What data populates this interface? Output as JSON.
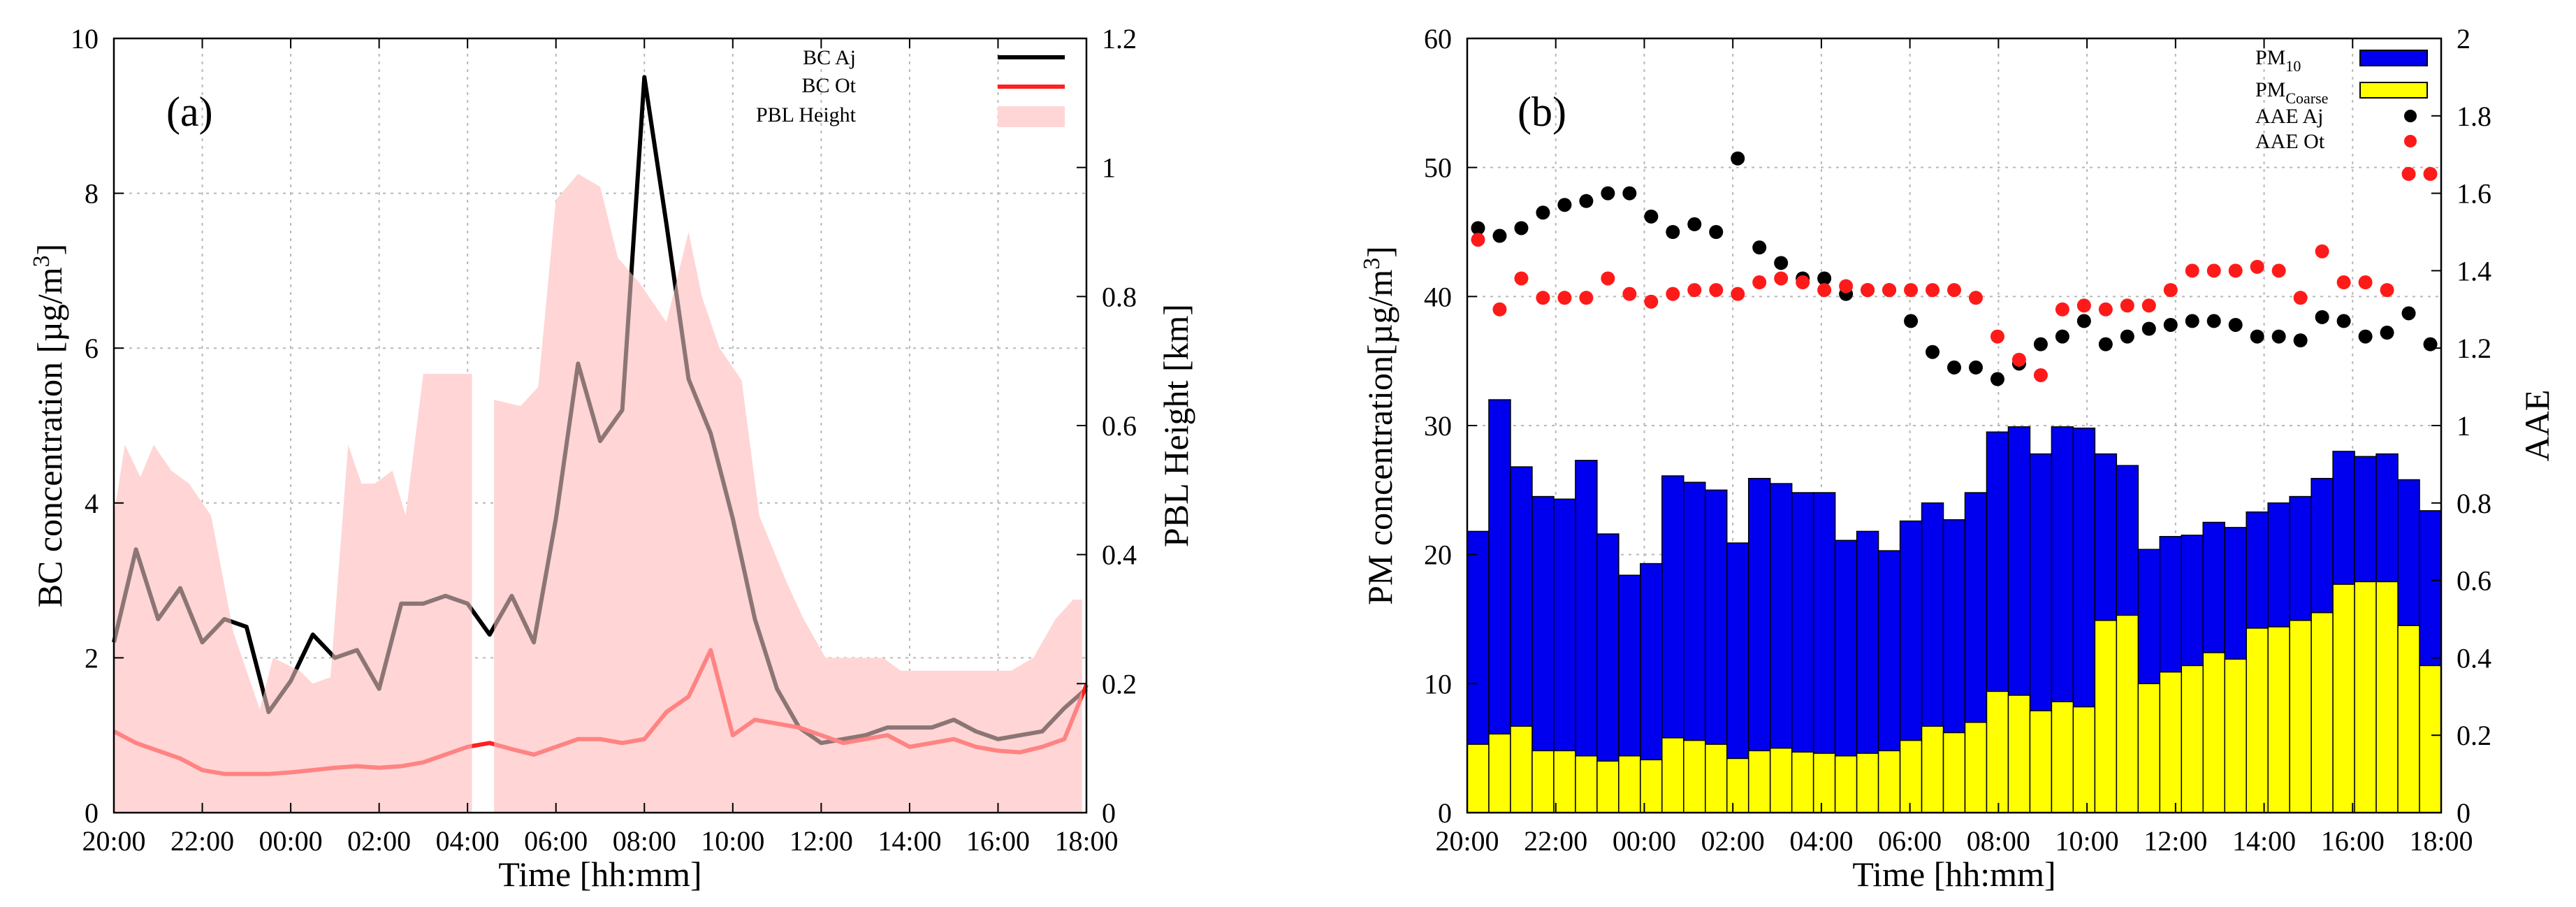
{
  "chart_data": [
    {
      "type": "line",
      "panel_label": "(a)",
      "xlabel": "Time [hh:mm]",
      "ylabel": "BC concentration [µg/m",
      "ylabel_sup": "3",
      "ylabel_close": "]",
      "y2label": "PBL Height [km]",
      "x_tick_labels": [
        "20:00",
        "22:00",
        "00:00",
        "02:00",
        "04:00",
        "06:00",
        "08:00",
        "10:00",
        "12:00",
        "14:00",
        "16:00",
        "18:00"
      ],
      "x_range_hours": [
        0,
        22
      ],
      "ylim": [
        0,
        10
      ],
      "yticks": [
        "0",
        "2",
        "4",
        "6",
        "8",
        "10"
      ],
      "y2lim": [
        0,
        1.2
      ],
      "y2ticks": [
        "0",
        "0.2",
        "0.4",
        "0.6",
        "0.8",
        "1",
        "1.2"
      ],
      "grid": true,
      "legend_position": "top-right",
      "legend": [
        "BC Aj",
        "BC Ot",
        "PBL Height"
      ],
      "colors": {
        "bc_aj": "#000000",
        "bc_ot": "#ff2020",
        "pbl": "#ffd6d6"
      },
      "series": [
        {
          "name": "BC Aj",
          "x": [
            0,
            0.5,
            1,
            1.5,
            2,
            2.5,
            3,
            3.5,
            4,
            4.5,
            5,
            5.5,
            6,
            6.5,
            7,
            7.5,
            8,
            8.5,
            9,
            9.5,
            10,
            10.5,
            11,
            11.5,
            12,
            12.5,
            13,
            13.5,
            14,
            14.5,
            15,
            15.5,
            16,
            16.5,
            17,
            17.5,
            18,
            18.5,
            19,
            19.5,
            20,
            20.5,
            21,
            21.5,
            22
          ],
          "values": [
            2.2,
            3.4,
            2.5,
            2.9,
            2.2,
            2.5,
            2.4,
            1.3,
            1.7,
            2.3,
            2.0,
            2.1,
            1.6,
            2.7,
            2.7,
            2.8,
            2.7,
            2.3,
            2.8,
            2.2,
            3.8,
            5.8,
            4.8,
            5.2,
            9.5,
            7.6,
            5.6,
            4.9,
            3.8,
            2.5,
            1.6,
            1.1,
            0.9,
            0.95,
            1.0,
            1.1,
            1.1,
            1.1,
            1.2,
            1.05,
            0.95,
            1.0,
            1.05,
            1.35,
            1.6
          ]
        },
        {
          "name": "BC Ot",
          "x": [
            0,
            0.5,
            1,
            1.5,
            2,
            2.5,
            3,
            3.5,
            4,
            4.5,
            5,
            5.5,
            6,
            6.5,
            7,
            7.5,
            8,
            8.5,
            9,
            9.5,
            10,
            10.5,
            11,
            11.5,
            12,
            12.5,
            13,
            13.5,
            14,
            14.5,
            15,
            15.5,
            16,
            16.5,
            17,
            17.5,
            18,
            18.5,
            19,
            19.5,
            20,
            20.5,
            21,
            21.5,
            22
          ],
          "values": [
            1.05,
            0.9,
            0.8,
            0.7,
            0.55,
            0.5,
            0.5,
            0.5,
            0.52,
            0.55,
            0.58,
            0.6,
            0.58,
            0.6,
            0.65,
            0.75,
            0.85,
            0.9,
            0.82,
            0.75,
            0.85,
            0.95,
            0.95,
            0.9,
            0.95,
            1.3,
            1.5,
            2.1,
            1.0,
            1.2,
            1.15,
            1.1,
            1.0,
            0.9,
            0.95,
            1.0,
            0.85,
            0.9,
            0.95,
            0.85,
            0.8,
            0.78,
            0.85,
            0.95,
            1.65
          ]
        },
        {
          "name": "PBL Height",
          "x": [
            0,
            0.25,
            0.6,
            0.9,
            1.3,
            1.7,
            2.2,
            2.7,
            3,
            3.3,
            3.6,
            3.9,
            4.2,
            4.5,
            4.9,
            5.3,
            5.6,
            5.9,
            6.3,
            6.6,
            7,
            7.3,
            7.6,
            7.9,
            8.1,
            8.15,
            8.6,
            9.2,
            9.6,
            10.0,
            10.5,
            11,
            11.4,
            11.9,
            12.5,
            13,
            13.3,
            13.7,
            14.2,
            14.6,
            15.2,
            15.6,
            16.1,
            16.5,
            16.9,
            17.4,
            17.8,
            18.4,
            19,
            19.6,
            20.3,
            20.8,
            21.3,
            21.7,
            21.9
          ],
          "values": [
            0.46,
            0.57,
            0.52,
            0.57,
            0.53,
            0.51,
            0.46,
            0.28,
            0.22,
            0.16,
            0.24,
            0.23,
            0.22,
            0.2,
            0.21,
            0.57,
            0.51,
            0.51,
            0.53,
            0.46,
            0.68,
            0.68,
            0.68,
            0.68,
            0.68,
            null,
            0.64,
            0.63,
            0.66,
            0.95,
            0.99,
            0.97,
            0.86,
            0.82,
            0.76,
            0.9,
            0.8,
            0.72,
            0.67,
            0.46,
            0.36,
            0.3,
            0.24,
            0.24,
            0.24,
            0.24,
            0.22,
            0.22,
            0.22,
            0.22,
            0.22,
            0.24,
            0.3,
            0.33,
            0.33
          ]
        }
      ],
      "pbl_gap_hours": [
        8.15,
        8.55
      ]
    },
    {
      "type": "bar",
      "panel_label": "(b)",
      "xlabel": "Time [hh:mm]",
      "ylabel": "PM concentration[µg/m",
      "ylabel_sup": "3",
      "ylabel_close": "]",
      "y2label": "AAE",
      "x_tick_labels": [
        "20:00",
        "22:00",
        "00:00",
        "02:00",
        "04:00",
        "06:00",
        "08:00",
        "10:00",
        "12:00",
        "14:00",
        "16:00",
        "18:00"
      ],
      "x_range_hours": [
        0,
        22
      ],
      "ylim": [
        0,
        60
      ],
      "yticks": [
        "0",
        "10",
        "20",
        "30",
        "40",
        "50",
        "60"
      ],
      "y2lim": [
        0,
        2
      ],
      "y2ticks": [
        "0",
        "0.2",
        "0.4",
        "0.6",
        "0.8",
        "1",
        "1.2",
        "1.4",
        "1.6",
        "1.8",
        "2"
      ],
      "grid": true,
      "legend_position": "top-right",
      "legend": [
        {
          "base": "PM",
          "sub": "10"
        },
        {
          "base": "PM",
          "sub": "Coarse"
        },
        {
          "base": "AAE Aj",
          "sub": ""
        },
        {
          "base": "AAE Ot",
          "sub": ""
        }
      ],
      "colors": {
        "pm10": "#0000ee",
        "pm_coarse": "#ffff00",
        "aae_aj": "#000000",
        "aae_ot": "#ff1a1a"
      },
      "bar_width_hours": 0.5,
      "series": [
        {
          "name": "PM10",
          "values": [
            21.8,
            32,
            26.8,
            24.5,
            24.3,
            27.3,
            21.6,
            18.4,
            19.3,
            26.1,
            25.6,
            25,
            20.9,
            25.9,
            25.5,
            24.8,
            24.8,
            21.1,
            21.8,
            20.3,
            22.6,
            24,
            22.7,
            24.8,
            29.5,
            29.9,
            27.8,
            29.9,
            29.8,
            27.8,
            26.9,
            20.4,
            21.4,
            21.5,
            22.5,
            22.1,
            23.3,
            24,
            24.5,
            25.9,
            28,
            27.6,
            27.8,
            25.8,
            23.4
          ]
        },
        {
          "name": "PM Coarse",
          "values": [
            5.3,
            6.1,
            6.7,
            4.8,
            4.8,
            4.4,
            4,
            4.4,
            4.1,
            5.8,
            5.6,
            5.3,
            4.2,
            4.8,
            5,
            4.7,
            4.6,
            4.4,
            4.6,
            4.8,
            5.6,
            6.7,
            6.2,
            7,
            9.4,
            9.1,
            7.9,
            8.6,
            8.2,
            14.9,
            15.3,
            10,
            10.9,
            11.4,
            12.4,
            11.9,
            14.3,
            14.4,
            14.9,
            15.5,
            17.7,
            17.9,
            17.9,
            14.5,
            11.4
          ]
        },
        {
          "name": "AAE Aj",
          "x": [
            0,
            0.5,
            1,
            1.5,
            2,
            2.5,
            3,
            3.5,
            4,
            4.5,
            5,
            5.5,
            6,
            6.5,
            7,
            7.5,
            8,
            8.5,
            9,
            9.5,
            10,
            10.5,
            11,
            11.5,
            12,
            12.5,
            13,
            13.5,
            14,
            14.5,
            15,
            15.5,
            16,
            16.5,
            17,
            17.5,
            18,
            18.5,
            19,
            19.5,
            20,
            20.5,
            21,
            21.5,
            22
          ],
          "values": [
            1.51,
            1.49,
            1.51,
            1.55,
            1.57,
            1.58,
            1.6,
            1.6,
            1.54,
            1.5,
            1.52,
            1.5,
            1.69,
            1.46,
            1.42,
            1.38,
            1.38,
            1.34,
            1.35,
            1.35,
            1.27,
            1.19,
            1.15,
            1.15,
            1.12,
            1.16,
            1.21,
            1.23,
            1.27,
            1.21,
            1.23,
            1.25,
            1.26,
            1.27,
            1.27,
            1.26,
            1.23,
            1.23,
            1.22,
            1.28,
            1.27,
            1.23,
            1.24,
            1.29,
            1.21
          ]
        },
        {
          "name": "AAE Ot",
          "x": [
            0,
            0.5,
            1,
            1.5,
            2,
            2.5,
            3,
            3.5,
            4,
            4.5,
            5,
            5.5,
            6,
            6.5,
            7,
            7.5,
            8,
            8.5,
            9,
            9.5,
            10,
            10.5,
            11,
            11.5,
            12,
            12.5,
            13,
            13.5,
            14,
            14.5,
            15,
            15.5,
            16,
            16.5,
            17,
            17.5,
            18,
            18.5,
            19,
            19.5,
            20,
            20.5,
            21,
            21.5,
            22
          ],
          "values": [
            1.48,
            1.3,
            1.38,
            1.33,
            1.33,
            1.33,
            1.38,
            1.34,
            1.32,
            1.34,
            1.35,
            1.35,
            1.34,
            1.37,
            1.38,
            1.37,
            1.35,
            1.36,
            1.35,
            1.35,
            1.35,
            1.35,
            1.35,
            1.33,
            1.23,
            1.17,
            1.13,
            1.3,
            1.31,
            1.3,
            1.31,
            1.31,
            1.35,
            1.4,
            1.4,
            1.4,
            1.41,
            1.4,
            1.33,
            1.45,
            1.37,
            1.37,
            1.35,
            1.65,
            1.65
          ]
        }
      ]
    }
  ]
}
